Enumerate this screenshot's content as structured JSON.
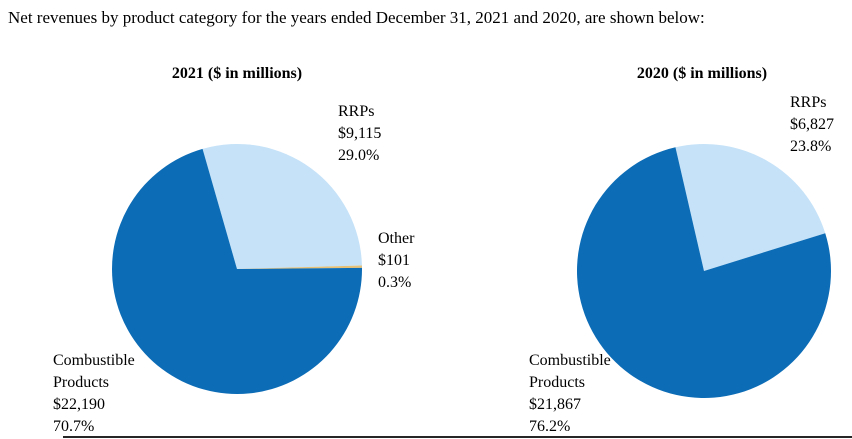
{
  "intro": "Net revenues by product category for the years ended December 31, 2021 and 2020, are shown below:",
  "colors": {
    "combustible_blue": "#0C6CB6",
    "rrps_light_blue": "#C5E2F8",
    "other_gold": "#E5C077"
  },
  "chart_data": [
    {
      "type": "pie",
      "title": "2021 ($ in millions)",
      "units": "$ in millions",
      "rotation_deg": -16,
      "legend_position": "callouts",
      "slices": [
        {
          "label": "RRPs",
          "value": 9115,
          "pct": 29.0,
          "color": "#C5E2F8"
        },
        {
          "label": "Other",
          "value": 101,
          "pct": 0.3,
          "color": "#E5C077"
        },
        {
          "label": "Combustible Products",
          "value": 22190,
          "pct": 70.7,
          "color": "#0C6CB6"
        }
      ],
      "callouts": [
        {
          "name": "rrps",
          "lines": [
            "RRPs",
            "$9,115",
            "29.0%"
          ]
        },
        {
          "name": "other",
          "lines": [
            "Other",
            "$101",
            "0.3%"
          ]
        },
        {
          "name": "combustible",
          "lines": [
            "Combustible",
            "Products",
            "$22,190",
            "70.7%"
          ]
        }
      ]
    },
    {
      "type": "pie",
      "title": "2020 ($ in millions)",
      "units": "$ in millions",
      "rotation_deg": -13,
      "legend_position": "callouts",
      "slices": [
        {
          "label": "RRPs",
          "value": 6827,
          "pct": 23.8,
          "color": "#C5E2F8"
        },
        {
          "label": "Combustible Products",
          "value": 21867,
          "pct": 76.2,
          "color": "#0C6CB6"
        }
      ],
      "callouts": [
        {
          "name": "rrps",
          "lines": [
            "RRPs",
            "$6,827",
            "23.8%"
          ]
        },
        {
          "name": "combustible",
          "lines": [
            "Combustible",
            "Products",
            "$21,867",
            "76.2%"
          ]
        }
      ]
    }
  ]
}
